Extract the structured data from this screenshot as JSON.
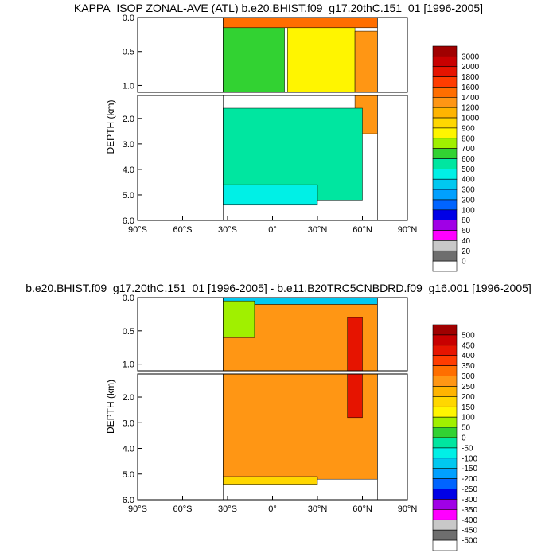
{
  "chart_data": [
    {
      "type": "heatmap",
      "title": "KAPPA_ISOP ZONAL-AVE (ATL) b.e20.BHIST.f09_g17.20thC.151_01 [1996-2005]",
      "ylabel": "DEPTH (km)",
      "x_tick_labels": [
        "90°S",
        "60°S",
        "30°S",
        "0°",
        "30°N",
        "60°N",
        "90°N"
      ],
      "x_ticks": [
        -90,
        -60,
        -30,
        0,
        30,
        60,
        90
      ],
      "upper_y_tick_labels": [
        "0.0",
        "0.5",
        "1.0"
      ],
      "upper_y_ticks": [
        0.0,
        0.5,
        1.0
      ],
      "lower_y_tick_labels": [
        "2.0",
        "3.0",
        "4.0",
        "5.0",
        "6.0"
      ],
      "lower_y_ticks": [
        2.0,
        3.0,
        4.0,
        5.0,
        6.0
      ],
      "xlim": [
        -90,
        90
      ],
      "upper_ylim": [
        0.0,
        1.1
      ],
      "lower_ylim": [
        1.1,
        6.0
      ],
      "data_extent_lat": [
        -33,
        70
      ],
      "colorbar": {
        "labels": [
          "3000",
          "2000",
          "1800",
          "1600",
          "1400",
          "1200",
          "1000",
          "900",
          "800",
          "700",
          "600",
          "500",
          "400",
          "300",
          "200",
          "100",
          "80",
          "60",
          "40",
          "20",
          "0"
        ],
        "colors": [
          "#a00000",
          "#c80000",
          "#e61400",
          "#ff3c00",
          "#ff6e00",
          "#ff9614",
          "#ffb400",
          "#ffd700",
          "#fff500",
          "#a0f000",
          "#32d232",
          "#00e6a0",
          "#00f0e6",
          "#00c8f0",
          "#00a0ff",
          "#0064ff",
          "#0000e6",
          "#a000e6",
          "#ff00ff",
          "#c8c8c8",
          "#6e6e6e",
          "#ffffff"
        ]
      },
      "regions": [
        {
          "name": "surface",
          "value": 1400,
          "lat": [
            -33,
            70
          ],
          "depth": [
            0.0,
            0.15
          ]
        },
        {
          "name": "upper-green",
          "value": 650,
          "lat": [
            -33,
            8
          ],
          "depth": [
            0.15,
            1.1
          ]
        },
        {
          "name": "subtropical-yellow",
          "value": 850,
          "lat": [
            10,
            55
          ],
          "depth": [
            0.15,
            1.1
          ]
        },
        {
          "name": "north-orange",
          "value": 1300,
          "lat": [
            55,
            70
          ],
          "depth": [
            0.2,
            2.6
          ]
        },
        {
          "name": "deep-cyan",
          "value": 550,
          "lat": [
            -33,
            60
          ],
          "depth": [
            1.6,
            5.2
          ]
        },
        {
          "name": "bottom-lightblue",
          "value": 450,
          "lat": [
            -33,
            30
          ],
          "depth": [
            4.6,
            5.4
          ]
        }
      ]
    },
    {
      "type": "heatmap",
      "title": "b.e20.BHIST.f09_g17.20thC.151_01 [1996-2005] - b.e11.B20TRC5CNBDRD.f09_g16.001 [1996-2005]",
      "ylabel": "DEPTH (km)",
      "x_tick_labels": [
        "90°S",
        "60°S",
        "30°S",
        "0°",
        "30°N",
        "60°N",
        "90°N"
      ],
      "x_ticks": [
        -90,
        -60,
        -30,
        0,
        30,
        60,
        90
      ],
      "upper_y_tick_labels": [
        "0.0",
        "0.5",
        "1.0"
      ],
      "upper_y_ticks": [
        0.0,
        0.5,
        1.0
      ],
      "lower_y_tick_labels": [
        "2.0",
        "3.0",
        "4.0",
        "5.0",
        "6.0"
      ],
      "lower_y_ticks": [
        2.0,
        3.0,
        4.0,
        5.0,
        6.0
      ],
      "xlim": [
        -90,
        90
      ],
      "upper_ylim": [
        0.0,
        1.1
      ],
      "lower_ylim": [
        1.1,
        6.0
      ],
      "data_extent_lat": [
        -33,
        70
      ],
      "colorbar": {
        "labels": [
          "500",
          "450",
          "400",
          "350",
          "300",
          "250",
          "200",
          "150",
          "100",
          "50",
          "0",
          "-50",
          "-100",
          "-150",
          "-200",
          "-250",
          "-300",
          "-350",
          "-400",
          "-450",
          "-500"
        ],
        "colors": [
          "#a00000",
          "#c80000",
          "#e61400",
          "#ff3c00",
          "#ff6e00",
          "#ff9614",
          "#ffb400",
          "#ffd700",
          "#fff500",
          "#a0f000",
          "#32d232",
          "#00e6a0",
          "#00f0e6",
          "#00c8f0",
          "#00a0ff",
          "#0064ff",
          "#0000e6",
          "#a000e6",
          "#ff00ff",
          "#c8c8c8",
          "#6e6e6e",
          "#ffffff"
        ]
      },
      "regions": [
        {
          "name": "interior",
          "value": 275,
          "lat": [
            -33,
            70
          ],
          "depth": [
            0.1,
            5.2
          ]
        },
        {
          "name": "surface-negative",
          "value": -150,
          "lat": [
            -33,
            70
          ],
          "depth": [
            0.0,
            0.1
          ]
        },
        {
          "name": "upper-green",
          "value": 60,
          "lat": [
            -33,
            -12
          ],
          "depth": [
            0.05,
            0.6
          ]
        },
        {
          "name": "north-red",
          "value": 425,
          "lat": [
            50,
            60
          ],
          "depth": [
            0.3,
            2.8
          ]
        },
        {
          "name": "bottom-yellow",
          "value": 175,
          "lat": [
            -33,
            30
          ],
          "depth": [
            5.1,
            5.4
          ]
        }
      ]
    }
  ]
}
